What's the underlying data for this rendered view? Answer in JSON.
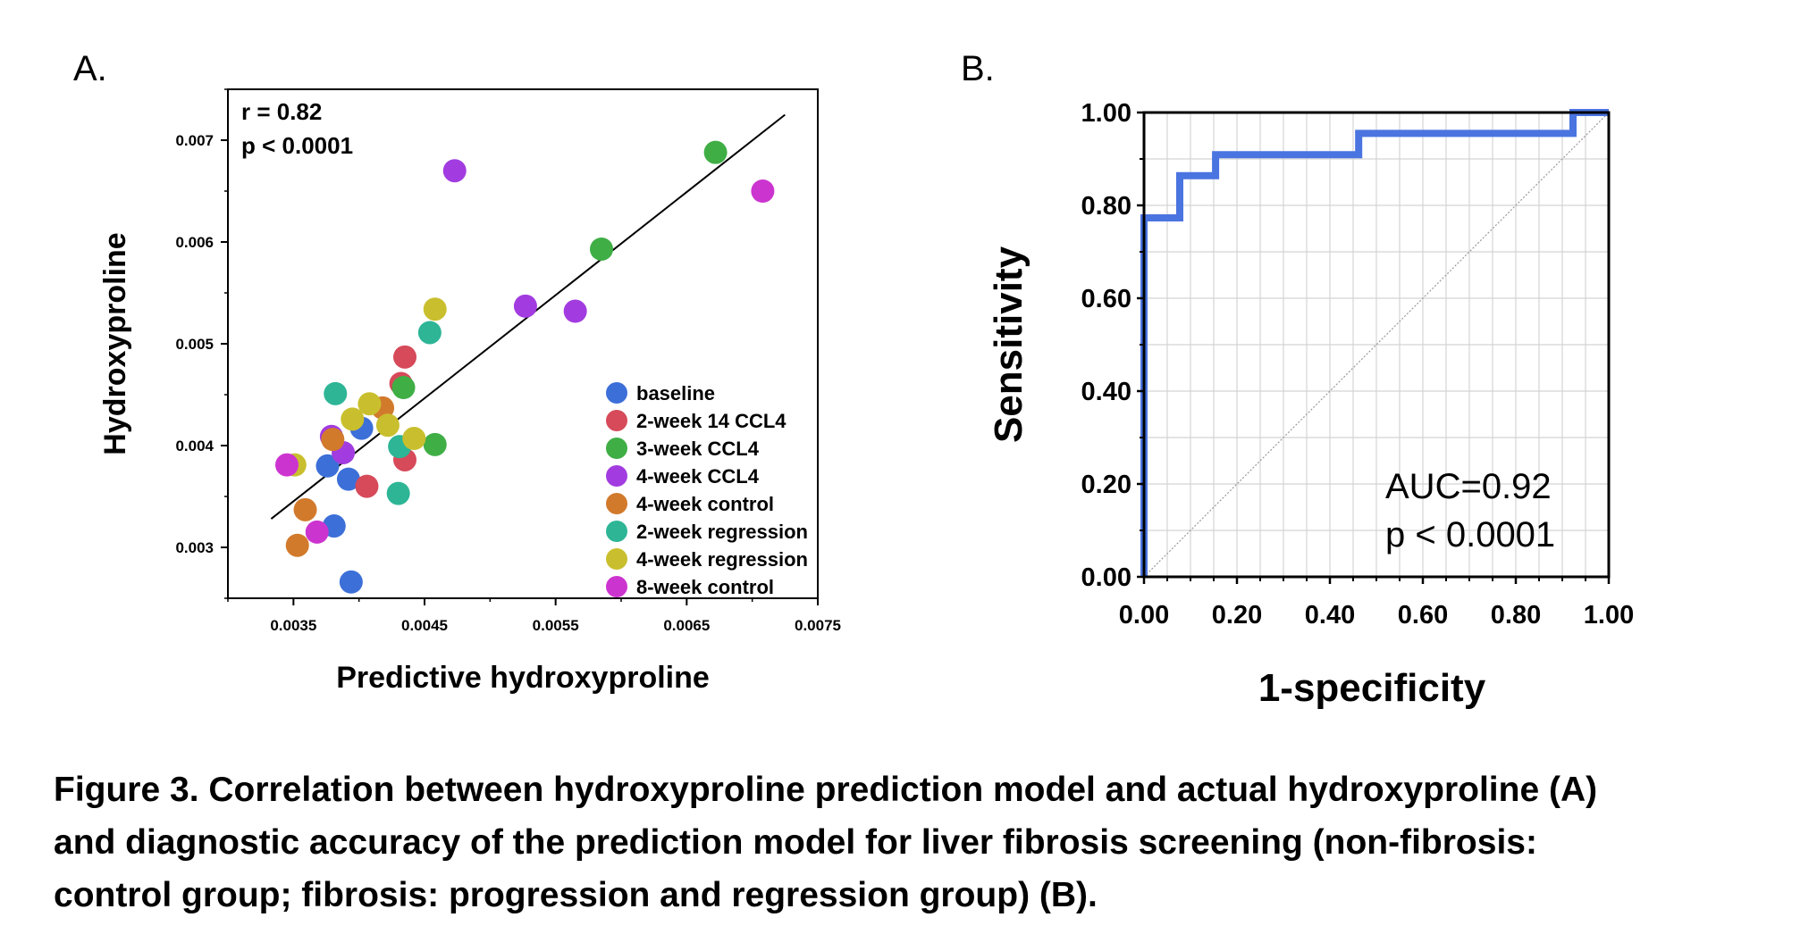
{
  "chart_data": [
    {
      "type": "scatter",
      "panel_label": "A.",
      "xlabel": "Predictive hydroxyproline",
      "ylabel": "Hydroxyproline",
      "xlim": [
        0.003,
        0.0075
      ],
      "ylim": [
        0.0025,
        0.0075
      ],
      "xticks": [
        0.0035,
        0.0045,
        0.0055,
        0.0065,
        0.0075
      ],
      "xtick_labels": [
        "0.0035",
        "0.0045",
        "0.0055",
        "0.0065",
        "0.0075"
      ],
      "yticks": [
        0.003,
        0.004,
        0.005,
        0.006,
        0.007
      ],
      "ytick_labels": [
        "0.003",
        "0.004",
        "0.005",
        "0.006",
        "0.007"
      ],
      "annotations": [
        "r = 0.82",
        "p < 0.0001"
      ],
      "legend_position": "bottom-right",
      "fit_line": {
        "x": [
          0.00333,
          0.00725
        ],
        "y": [
          0.00328,
          0.00725
        ]
      },
      "series": [
        {
          "name": "baseline",
          "color": "#3c6fd8",
          "x": [
            0.00376,
            0.00392,
            0.00381,
            0.00394,
            0.00402
          ],
          "y": [
            0.0038,
            0.00367,
            0.00321,
            0.00266,
            0.00417
          ]
        },
        {
          "name": "2-week 14 CCL4",
          "color": "#d64a5a",
          "x": [
            0.00432,
            0.00435,
            0.00435,
            0.00406
          ],
          "y": [
            0.00461,
            0.00487,
            0.00386,
            0.0036
          ]
        },
        {
          "name": "3-week CCL4",
          "color": "#3fae45",
          "x": [
            0.00434,
            0.00458,
            0.00585,
            0.00672
          ],
          "y": [
            0.00457,
            0.00401,
            0.00593,
            0.00688
          ]
        },
        {
          "name": "4-week CCL4",
          "color": "#a23ce0",
          "x": [
            0.00473,
            0.00527,
            0.00565,
            0.00388,
            0.00379
          ],
          "y": [
            0.0067,
            0.00537,
            0.00532,
            0.00393,
            0.00409
          ]
        },
        {
          "name": "4-week control",
          "color": "#d27a2c",
          "x": [
            0.00418,
            0.0038,
            0.00359,
            0.00353
          ],
          "y": [
            0.00437,
            0.00406,
            0.00337,
            0.00302
          ]
        },
        {
          "name": "2-week regression",
          "color": "#2db596",
          "x": [
            0.00382,
            0.00454,
            0.00431,
            0.0043
          ],
          "y": [
            0.00451,
            0.00511,
            0.00399,
            0.00353
          ]
        },
        {
          "name": "4-week regression",
          "color": "#c9bf2e",
          "x": [
            0.00458,
            0.00408,
            0.00395,
            0.00422,
            0.00442,
            0.00351
          ],
          "y": [
            0.00534,
            0.00441,
            0.00426,
            0.0042,
            0.00407,
            0.00381
          ]
        },
        {
          "name": "8-week control",
          "color": "#cc34d0",
          "x": [
            0.00708,
            0.00368,
            0.00345
          ],
          "y": [
            0.0065,
            0.00315,
            0.00381
          ]
        }
      ]
    },
    {
      "type": "line",
      "panel_label": "B.",
      "xlabel": "1-specificity",
      "ylabel": "Sensitivity",
      "xlim": [
        0,
        1
      ],
      "ylim": [
        0,
        1
      ],
      "xticks": [
        0,
        0.2,
        0.4,
        0.6,
        0.8,
        1.0
      ],
      "xtick_labels": [
        "0.00",
        "0.20",
        "0.40",
        "0.60",
        "0.80",
        "1.00"
      ],
      "yticks": [
        0,
        0.2,
        0.4,
        0.6,
        0.8,
        1.0
      ],
      "ytick_labels": [
        "0.00",
        "0.20",
        "0.40",
        "0.60",
        "0.80",
        "1.00"
      ],
      "grid": true,
      "annotations": [
        "AUC=0.92",
        "p < 0.0001"
      ],
      "series": [
        {
          "name": "ROC",
          "color": "#4a74e0",
          "x": [
            0,
            0,
            0.077,
            0.077,
            0.154,
            0.154,
            0.462,
            0.462,
            0.923,
            0.923,
            1.0
          ],
          "y": [
            0,
            0.773,
            0.773,
            0.864,
            0.864,
            0.909,
            0.909,
            0.955,
            0.955,
            1.0,
            1.0
          ]
        },
        {
          "name": "reference",
          "color": "#999999",
          "x": [
            0,
            1
          ],
          "y": [
            0,
            1
          ]
        }
      ]
    }
  ],
  "caption": {
    "lines": [
      "Figure 3. Correlation between hydroxyproline prediction model and actual hydroxyproline (A)",
      "and diagnostic accuracy of the prediction model for liver fibrosis screening (non-fibrosis:",
      "control group; fibrosis: progression and regression group) (B)."
    ]
  }
}
